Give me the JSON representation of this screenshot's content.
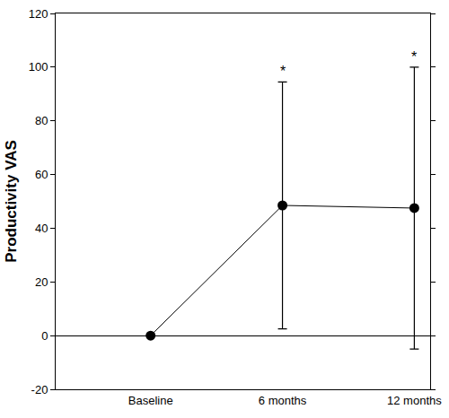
{
  "chart_data": {
    "type": "line",
    "categories": [
      "Baseline",
      "6 months",
      "12 months"
    ],
    "values": [
      0,
      48.5,
      47.5
    ],
    "errors": [
      null,
      46,
      52.5
    ],
    "y_label": "Productivity VAS",
    "ylim": [
      -20,
      120
    ],
    "yticks": [
      -20,
      0,
      20,
      40,
      60,
      80,
      100,
      120
    ],
    "color": "#000000",
    "marker": "circle",
    "grid": false,
    "annotations": [
      {
        "text": "*",
        "category": "6 months"
      },
      {
        "text": "*",
        "category": "12 months"
      }
    ]
  }
}
